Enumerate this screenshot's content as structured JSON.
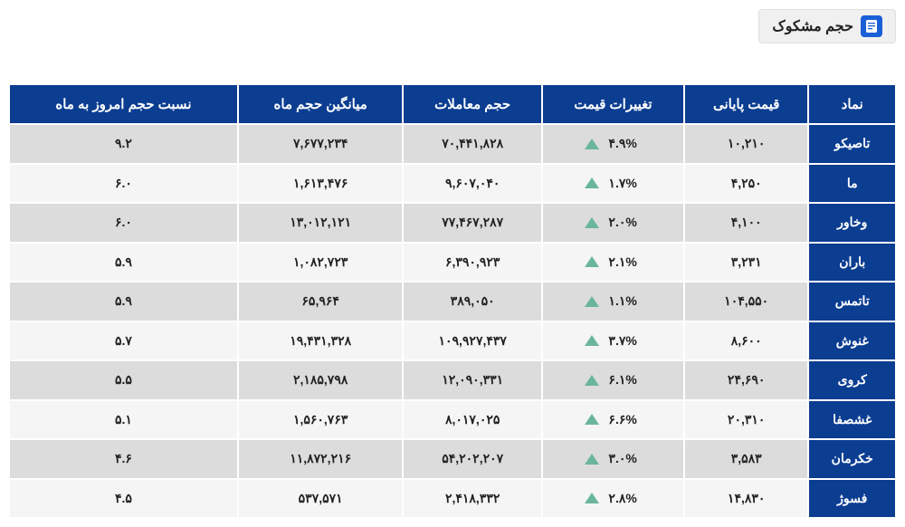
{
  "header": {
    "title": "حجم مشکوک",
    "icon_name": "document-icon",
    "badge_bg": "#f0f0f0",
    "icon_bg": "#1a5fd6",
    "icon_fg": "#ffffff"
  },
  "table": {
    "header_bg": "#0b3d91",
    "header_fg": "#ffffff",
    "row_even_bg": "#dcdcdc",
    "row_odd_bg": "#f5f5f5",
    "symbol_bg": "#0b3d91",
    "symbol_fg": "#ffffff",
    "up_color": "#6ab69b",
    "columns": [
      "نماد",
      "قیمت پایانی",
      "تغییرات قیمت",
      "حجم معاملات",
      "میانگین حجم ماه",
      "نسبت حجم امروز به ماه"
    ],
    "rows": [
      {
        "symbol": "تاصیکو",
        "final_price": "۱۰,۲۱۰",
        "change_pct": "۴.۹%",
        "change_dir": "up",
        "volume": "۷۰,۴۴۱,۸۲۸",
        "avg_month_volume": "۷,۶۷۷,۲۳۴",
        "ratio": "۹.۲"
      },
      {
        "symbol": "ما",
        "final_price": "۴,۲۵۰",
        "change_pct": "۱.۷%",
        "change_dir": "up",
        "volume": "۹,۶۰۷,۰۴۰",
        "avg_month_volume": "۱,۶۱۳,۴۷۶",
        "ratio": "۶.۰"
      },
      {
        "symbol": "وخاور",
        "final_price": "۴,۱۰۰",
        "change_pct": "۲.۰%",
        "change_dir": "up",
        "volume": "۷۷,۴۶۷,۲۸۷",
        "avg_month_volume": "۱۳,۰۱۲,۱۲۱",
        "ratio": "۶.۰"
      },
      {
        "symbol": "باران",
        "final_price": "۳,۲۳۱",
        "change_pct": "۲.۱%",
        "change_dir": "up",
        "volume": "۶,۳۹۰,۹۲۳",
        "avg_month_volume": "۱,۰۸۲,۷۲۳",
        "ratio": "۵.۹"
      },
      {
        "symbol": "تاتمس",
        "final_price": "۱۰۴,۵۵۰",
        "change_pct": "۱.۱%",
        "change_dir": "up",
        "volume": "۳۸۹,۰۵۰",
        "avg_month_volume": "۶۵,۹۶۴",
        "ratio": "۵.۹"
      },
      {
        "symbol": "غنوش",
        "final_price": "۸,۶۰۰",
        "change_pct": "۳.۷%",
        "change_dir": "up",
        "volume": "۱۰۹,۹۲۷,۴۳۷",
        "avg_month_volume": "۱۹,۴۳۱,۳۲۸",
        "ratio": "۵.۷"
      },
      {
        "symbol": "کروی",
        "final_price": "۲۴,۶۹۰",
        "change_pct": "۶.۱%",
        "change_dir": "up",
        "volume": "۱۲,۰۹۰,۳۳۱",
        "avg_month_volume": "۲,۱۸۵,۷۹۸",
        "ratio": "۵.۵"
      },
      {
        "symbol": "غشصفا",
        "final_price": "۲۰,۳۱۰",
        "change_pct": "۶.۶%",
        "change_dir": "up",
        "volume": "۸,۰۱۷,۰۲۵",
        "avg_month_volume": "۱,۵۶۰,۷۶۳",
        "ratio": "۵.۱"
      },
      {
        "symbol": "خکرمان",
        "final_price": "۳,۵۸۳",
        "change_pct": "۳.۰%",
        "change_dir": "up",
        "volume": "۵۴,۲۰۲,۲۰۷",
        "avg_month_volume": "۱۱,۸۷۲,۲۱۶",
        "ratio": "۴.۶"
      },
      {
        "symbol": "فسوژ",
        "final_price": "۱۴,۸۳۰",
        "change_pct": "۲.۸%",
        "change_dir": "up",
        "volume": "۲,۴۱۸,۳۳۲",
        "avg_month_volume": "۵۳۷,۵۷۱",
        "ratio": "۴.۵"
      }
    ]
  }
}
